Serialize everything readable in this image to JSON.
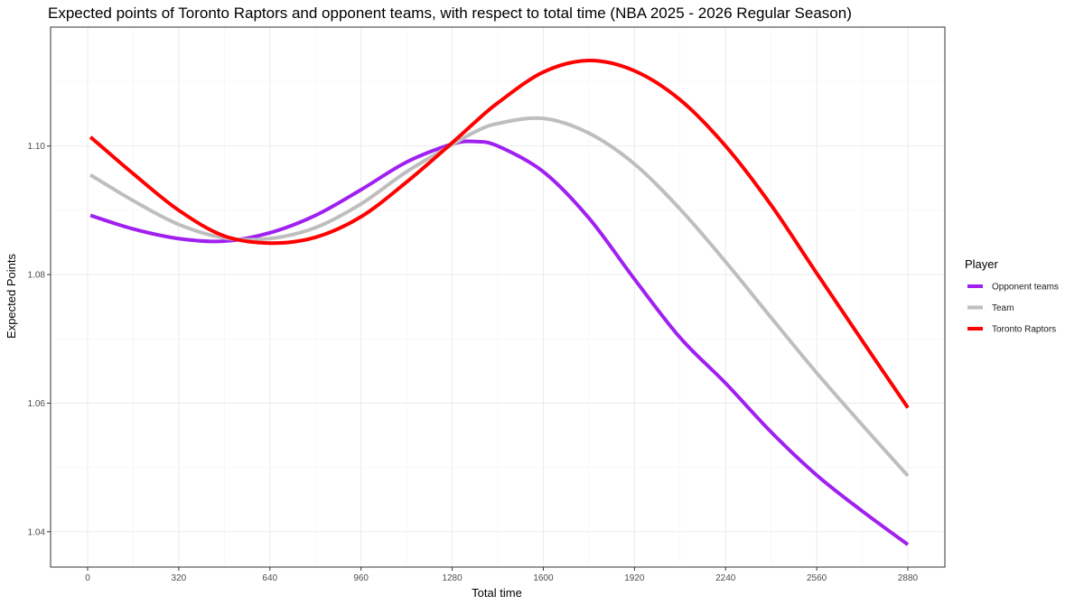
{
  "chart_data": {
    "type": "line",
    "title": "Expected points of Toronto Raptors and opponent teams, with respect to total time (NBA 2025 - 2026 Regular Season)",
    "xlabel": "Total time",
    "ylabel": "Expected Points",
    "xlim": [
      -130,
      3010
    ],
    "ylim": [
      1.0345,
      1.1185
    ],
    "x_ticks": [
      0,
      320,
      640,
      960,
      1280,
      1600,
      1920,
      2240,
      2560,
      2880
    ],
    "x_tick_labels": [
      "0",
      "320",
      "640",
      "960",
      "1280",
      "1600",
      "1920",
      "2240",
      "2560",
      "2880"
    ],
    "y_ticks": [
      1.04,
      1.06,
      1.08,
      1.1
    ],
    "y_tick_labels": [
      "1.04",
      "1.06",
      "1.08",
      "1.10"
    ],
    "grid": true,
    "legend": {
      "title": "Player",
      "position": "right"
    },
    "x": [
      10,
      160,
      320,
      480,
      640,
      800,
      960,
      1120,
      1280,
      1360,
      1440,
      1600,
      1760,
      1920,
      2080,
      2240,
      2400,
      2560,
      2720,
      2880
    ],
    "series": [
      {
        "name": "Opponent teams",
        "color": "#a020f0",
        "values": [
          1.0892,
          1.0871,
          1.0856,
          1.0852,
          1.0865,
          1.0892,
          1.0932,
          1.0975,
          1.1003,
          1.1007,
          1.1,
          1.096,
          1.0888,
          1.0793,
          1.0702,
          1.0631,
          1.0555,
          1.0488,
          1.0432,
          1.038
        ]
      },
      {
        "name": "Team",
        "color": "#bebebe",
        "values": [
          1.0955,
          1.0915,
          1.0878,
          1.0857,
          1.0856,
          1.0873,
          1.091,
          1.096,
          1.1002,
          1.1022,
          1.1035,
          1.1043,
          1.102,
          1.0972,
          1.0902,
          1.082,
          1.0733,
          1.0647,
          1.0566,
          1.0487
        ]
      },
      {
        "name": "Toronto Raptors",
        "color": "#ff0000",
        "values": [
          1.1014,
          1.0957,
          1.09,
          1.086,
          1.0849,
          1.0858,
          1.089,
          1.0944,
          1.1005,
          1.1037,
          1.1067,
          1.1115,
          1.1133,
          1.1117,
          1.1072,
          1.1,
          1.0908,
          1.0802,
          1.0697,
          1.0593
        ]
      }
    ]
  }
}
